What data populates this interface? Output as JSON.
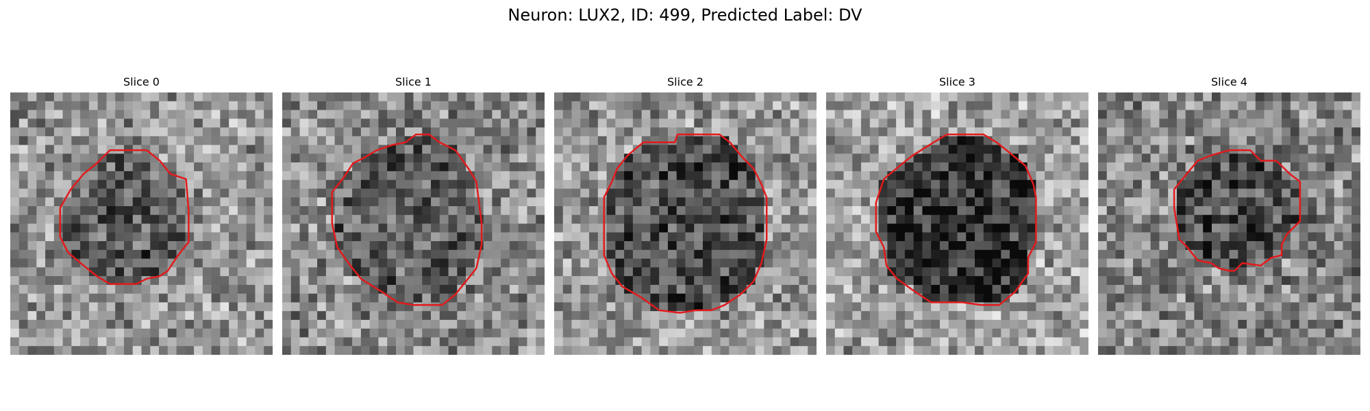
{
  "figure": {
    "title": "Neuron: LUX2, ID: 499, Predicted Label: DV"
  },
  "contour_color": "#e31a1c",
  "slices": [
    {
      "title": "Slice 0",
      "bg_mean": 150,
      "cell_mean": 88,
      "seed": 11,
      "contour": [
        [
          0.38,
          0.22
        ],
        [
          0.52,
          0.22
        ],
        [
          0.57,
          0.26
        ],
        [
          0.61,
          0.31
        ],
        [
          0.67,
          0.33
        ],
        [
          0.68,
          0.45
        ],
        [
          0.68,
          0.57
        ],
        [
          0.64,
          0.62
        ],
        [
          0.6,
          0.68
        ],
        [
          0.57,
          0.7
        ],
        [
          0.52,
          0.71
        ],
        [
          0.48,
          0.73
        ],
        [
          0.38,
          0.73
        ],
        [
          0.33,
          0.7
        ],
        [
          0.28,
          0.66
        ],
        [
          0.22,
          0.61
        ],
        [
          0.19,
          0.55
        ],
        [
          0.19,
          0.44
        ],
        [
          0.23,
          0.37
        ],
        [
          0.28,
          0.31
        ],
        [
          0.33,
          0.27
        ]
      ]
    },
    {
      "title": "Slice 1",
      "bg_mean": 140,
      "cell_mean": 95,
      "seed": 23,
      "contour": [
        [
          0.42,
          0.2
        ],
        [
          0.47,
          0.19
        ],
        [
          0.51,
          0.16
        ],
        [
          0.56,
          0.16
        ],
        [
          0.6,
          0.19
        ],
        [
          0.66,
          0.22
        ],
        [
          0.71,
          0.29
        ],
        [
          0.74,
          0.34
        ],
        [
          0.75,
          0.42
        ],
        [
          0.76,
          0.5
        ],
        [
          0.76,
          0.58
        ],
        [
          0.74,
          0.67
        ],
        [
          0.7,
          0.72
        ],
        [
          0.66,
          0.77
        ],
        [
          0.61,
          0.81
        ],
        [
          0.5,
          0.81
        ],
        [
          0.44,
          0.8
        ],
        [
          0.38,
          0.76
        ],
        [
          0.3,
          0.71
        ],
        [
          0.26,
          0.66
        ],
        [
          0.21,
          0.59
        ],
        [
          0.19,
          0.5
        ],
        [
          0.19,
          0.38
        ],
        [
          0.23,
          0.33
        ],
        [
          0.27,
          0.27
        ],
        [
          0.31,
          0.25
        ],
        [
          0.36,
          0.22
        ]
      ]
    },
    {
      "title": "Slice 2",
      "bg_mean": 150,
      "cell_mean": 80,
      "seed": 37,
      "contour": [
        [
          0.34,
          0.19
        ],
        [
          0.46,
          0.19
        ],
        [
          0.47,
          0.16
        ],
        [
          0.63,
          0.16
        ],
        [
          0.67,
          0.19
        ],
        [
          0.72,
          0.25
        ],
        [
          0.76,
          0.29
        ],
        [
          0.79,
          0.35
        ],
        [
          0.81,
          0.4
        ],
        [
          0.81,
          0.56
        ],
        [
          0.79,
          0.65
        ],
        [
          0.76,
          0.72
        ],
        [
          0.71,
          0.77
        ],
        [
          0.65,
          0.81
        ],
        [
          0.6,
          0.83
        ],
        [
          0.54,
          0.83
        ],
        [
          0.48,
          0.84
        ],
        [
          0.4,
          0.83
        ],
        [
          0.33,
          0.78
        ],
        [
          0.26,
          0.74
        ],
        [
          0.22,
          0.69
        ],
        [
          0.19,
          0.62
        ],
        [
          0.19,
          0.4
        ],
        [
          0.22,
          0.34
        ],
        [
          0.24,
          0.29
        ],
        [
          0.28,
          0.24
        ]
      ]
    },
    {
      "title": "Slice 3",
      "bg_mean": 160,
      "cell_mean": 50,
      "seed": 51,
      "contour": [
        [
          0.41,
          0.19
        ],
        [
          0.46,
          0.16
        ],
        [
          0.6,
          0.16
        ],
        [
          0.65,
          0.19
        ],
        [
          0.7,
          0.23
        ],
        [
          0.76,
          0.28
        ],
        [
          0.79,
          0.35
        ],
        [
          0.8,
          0.4
        ],
        [
          0.8,
          0.57
        ],
        [
          0.77,
          0.63
        ],
        [
          0.77,
          0.69
        ],
        [
          0.72,
          0.76
        ],
        [
          0.66,
          0.81
        ],
        [
          0.59,
          0.81
        ],
        [
          0.52,
          0.8
        ],
        [
          0.4,
          0.8
        ],
        [
          0.34,
          0.76
        ],
        [
          0.27,
          0.71
        ],
        [
          0.23,
          0.66
        ],
        [
          0.22,
          0.59
        ],
        [
          0.19,
          0.53
        ],
        [
          0.19,
          0.42
        ],
        [
          0.22,
          0.33
        ],
        [
          0.28,
          0.28
        ],
        [
          0.33,
          0.24
        ]
      ]
    },
    {
      "title": "Slice 4",
      "bg_mean": 135,
      "cell_mean": 75,
      "seed": 67,
      "contour": [
        [
          0.38,
          0.26
        ],
        [
          0.43,
          0.24
        ],
        [
          0.5,
          0.22
        ],
        [
          0.58,
          0.22
        ],
        [
          0.62,
          0.26
        ],
        [
          0.68,
          0.26
        ],
        [
          0.73,
          0.31
        ],
        [
          0.77,
          0.34
        ],
        [
          0.77,
          0.49
        ],
        [
          0.72,
          0.54
        ],
        [
          0.7,
          0.58
        ],
        [
          0.7,
          0.62
        ],
        [
          0.66,
          0.63
        ],
        [
          0.62,
          0.66
        ],
        [
          0.55,
          0.65
        ],
        [
          0.52,
          0.68
        ],
        [
          0.5,
          0.68
        ],
        [
          0.46,
          0.67
        ],
        [
          0.43,
          0.65
        ],
        [
          0.38,
          0.64
        ],
        [
          0.34,
          0.59
        ],
        [
          0.31,
          0.56
        ],
        [
          0.3,
          0.5
        ],
        [
          0.29,
          0.44
        ],
        [
          0.29,
          0.37
        ],
        [
          0.33,
          0.32
        ]
      ]
    }
  ]
}
